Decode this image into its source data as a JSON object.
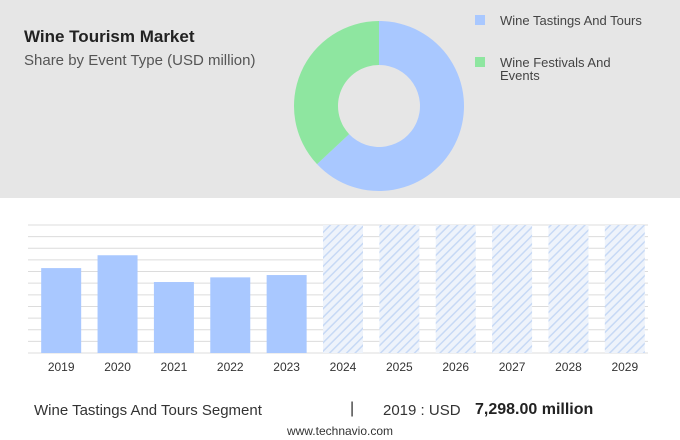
{
  "header": {
    "title": "Wine Tourism Market",
    "subtitle": "Share by Event Type (USD million)"
  },
  "legend": [
    {
      "label_line1": "Wine Tastings And Tours",
      "label_line2": "",
      "color": "#a9c8ff"
    },
    {
      "label_line1": "Wine Festivals And",
      "label_line2": "Events",
      "color": "#8ee6a0"
    }
  ],
  "footer": {
    "segment": "Wine Tastings And Tours Segment",
    "separator": "|",
    "year_label": "2019 : USD",
    "value": "7,298.00 million",
    "credit": "www.technavio.com"
  },
  "chart_data": [
    {
      "type": "pie",
      "title": "Share by Event Type (USD million)",
      "categories": [
        "Wine Tastings And Tours",
        "Wine Festivals And Events"
      ],
      "values": [
        63,
        37
      ],
      "colors": [
        "#a9c8ff",
        "#8ee6a0"
      ]
    },
    {
      "type": "bar",
      "categories": [
        "2019",
        "2020",
        "2021",
        "2022",
        "2023",
        "2024",
        "2025",
        "2026",
        "2027",
        "2028",
        "2029"
      ],
      "series": [
        {
          "values": [
            7298,
            8400,
            6100,
            6500,
            6700,
            null,
            null,
            null,
            null,
            null,
            null
          ]
        }
      ],
      "forecast_categories": [
        "2024",
        "2025",
        "2026",
        "2027",
        "2028",
        "2029"
      ],
      "ylim": [
        0,
        11000
      ],
      "grid": true,
      "bar_color": "#a9c8ff",
      "forecast_color": "#c7d9f5"
    }
  ]
}
